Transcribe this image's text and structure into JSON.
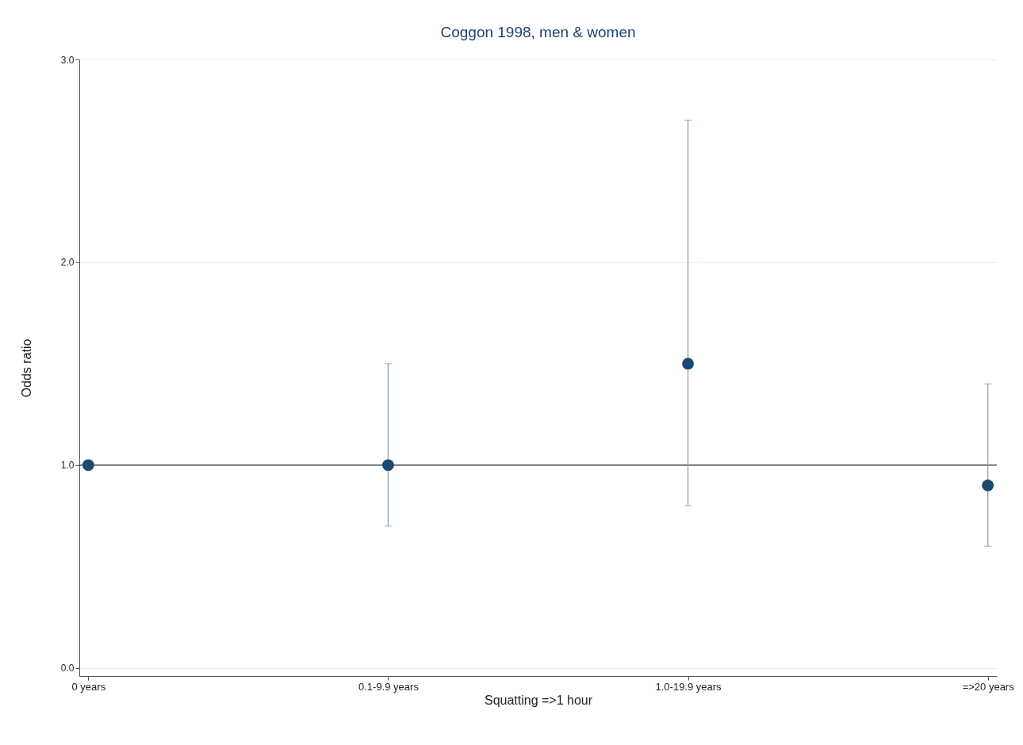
{
  "chart_data": {
    "type": "scatter",
    "title": "Coggon 1998, men & women",
    "xlabel": "Squatting =>1 hour",
    "ylabel": "Odds ratio",
    "categories": [
      "0 years",
      "0.1-9.9 years",
      "1.0-19.9 years",
      "=>20 years"
    ],
    "series": [
      {
        "color": "#1a4a72",
        "values": [
          1.0,
          1.0,
          1.5,
          0.9
        ],
        "errors": [
          null,
          [
            0.7,
            1.5
          ],
          [
            0.8,
            2.7
          ],
          [
            0.6,
            1.4
          ]
        ]
      }
    ],
    "ylim": [
      -0.04,
      3.0
    ],
    "yticks": [
      {
        "value": 0,
        "label": "0.0"
      },
      {
        "value": 1,
        "label": "1.0"
      },
      {
        "value": 2,
        "label": "2.0"
      },
      {
        "value": 3,
        "label": "3.0"
      }
    ],
    "ref_lines": [
      {
        "axis": "y",
        "value": 1,
        "color": "#333333"
      }
    ],
    "grid": "y",
    "marker": "circle"
  }
}
